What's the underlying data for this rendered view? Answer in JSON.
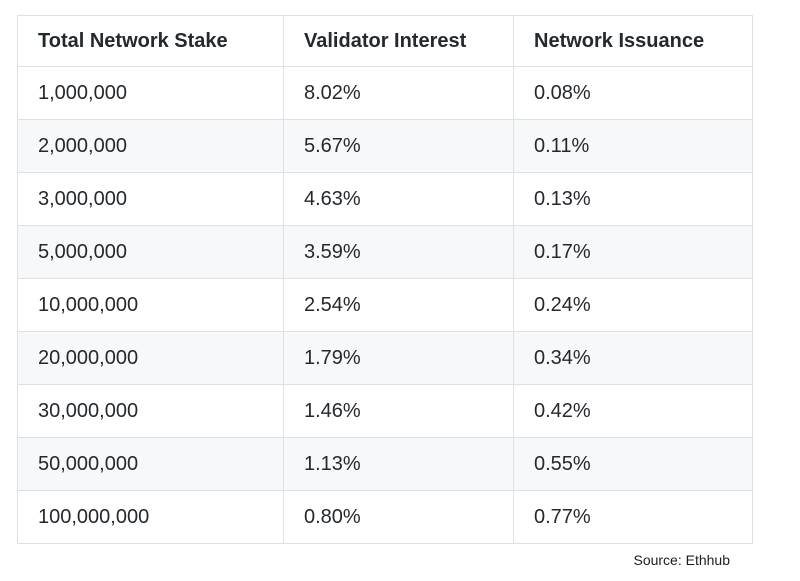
{
  "table": {
    "headers": [
      "Total Network Stake",
      "Validator Interest",
      "Network Issuance"
    ],
    "rows": [
      [
        "1,000,000",
        "8.02%",
        "0.08%"
      ],
      [
        "2,000,000",
        "5.67%",
        "0.11%"
      ],
      [
        "3,000,000",
        "4.63%",
        "0.13%"
      ],
      [
        "5,000,000",
        "3.59%",
        "0.17%"
      ],
      [
        "10,000,000",
        "2.54%",
        "0.24%"
      ],
      [
        "20,000,000",
        "1.79%",
        "0.34%"
      ],
      [
        "30,000,000",
        "1.46%",
        "0.42%"
      ],
      [
        "50,000,000",
        "1.13%",
        "0.55%"
      ],
      [
        "100,000,000",
        "0.80%",
        "0.77%"
      ]
    ]
  },
  "source": {
    "label": "Source: Ethhub"
  },
  "colors": {
    "row_stripe": "#f6f8fa",
    "border": "#dfe2e5",
    "text": "#24292e",
    "background": "#ffffff"
  }
}
